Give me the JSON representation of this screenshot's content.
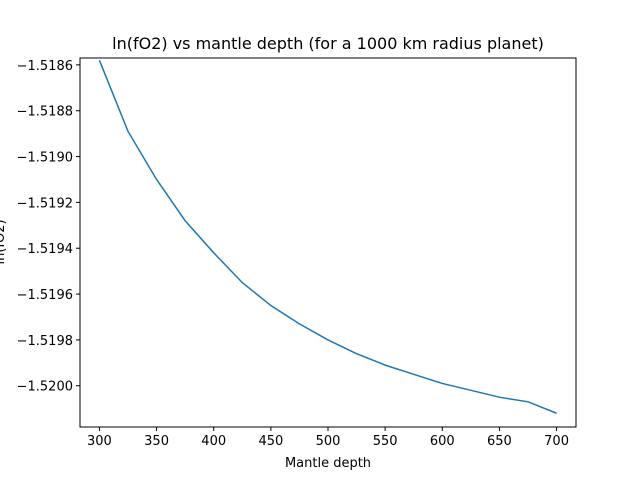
{
  "chart_data": {
    "type": "line",
    "title": "ln(fO2) vs mantle depth (for a 1000 km radius planet)",
    "xlabel": "Mantle depth",
    "ylabel": "ln(fO2)",
    "xlim": [
      283,
      717
    ],
    "ylim": [
      -1.52018,
      -1.51857
    ],
    "xticks": [
      300,
      350,
      400,
      450,
      500,
      550,
      600,
      650,
      700
    ],
    "yticks": [
      -1.5186,
      -1.5188,
      -1.519,
      -1.5192,
      -1.5194,
      -1.5196,
      -1.5198,
      -1.52
    ],
    "ytick_labels": [
      "−1.5186",
      "−1.5188",
      "−1.5190",
      "−1.5192",
      "−1.5194",
      "−1.5196",
      "−1.5198",
      "−1.5200"
    ],
    "grid": false,
    "series": [
      {
        "color": "#1f77b4",
        "x": [
          300,
          325,
          350,
          375,
          400,
          425,
          450,
          475,
          500,
          525,
          550,
          575,
          600,
          625,
          650,
          675,
          700
        ],
        "y": [
          -1.51858,
          -1.51889,
          -1.5191,
          -1.51928,
          -1.51942,
          -1.51955,
          -1.51965,
          -1.51973,
          -1.5198,
          -1.51986,
          -1.51991,
          -1.51995,
          -1.51999,
          -1.52002,
          -1.52005,
          -1.52007,
          -1.52012
        ]
      }
    ]
  }
}
